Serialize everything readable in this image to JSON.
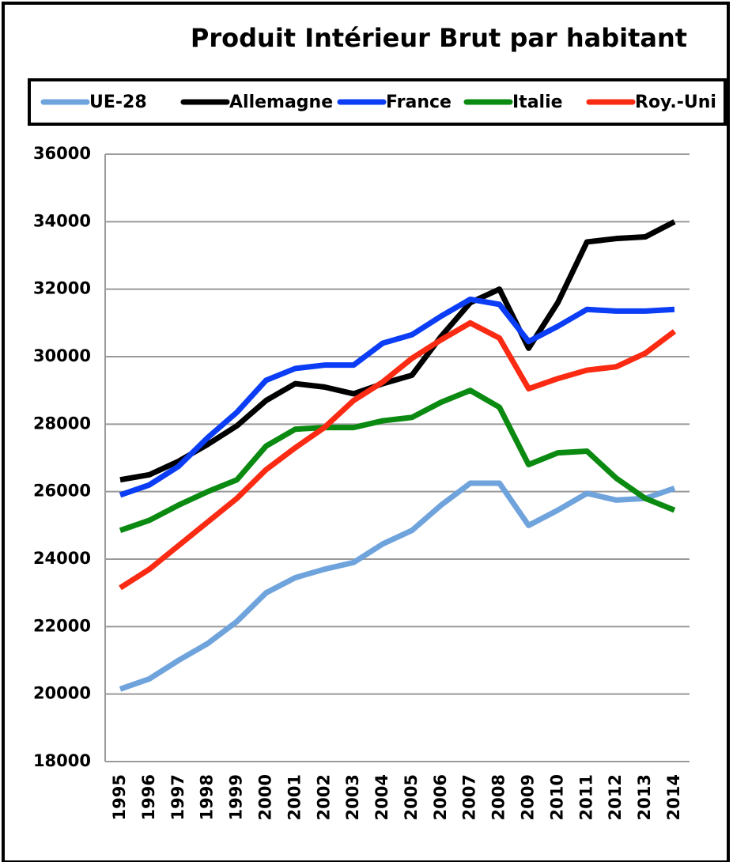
{
  "chart_data": {
    "type": "line",
    "title": "Produit Intérieur Brut par habitant",
    "categories": [
      "1995",
      "1996",
      "1997",
      "1998",
      "1999",
      "2000",
      "2001",
      "2002",
      "2003",
      "2004",
      "2005",
      "2006",
      "2007",
      "2008",
      "2009",
      "2010",
      "2011",
      "2012",
      "2013",
      "2014"
    ],
    "series": [
      {
        "name": "UE-28",
        "color": "#6fa3dc",
        "values": [
          20150,
          20450,
          21000,
          21500,
          22150,
          23000,
          23450,
          23700,
          23900,
          24450,
          24850,
          25600,
          26250,
          26250,
          25000,
          25450,
          25950,
          25750,
          25800,
          26100
        ]
      },
      {
        "name": "Allemagne",
        "color": "#000000",
        "values": [
          26350,
          26500,
          26900,
          27400,
          27950,
          28700,
          29200,
          29100,
          28900,
          29200,
          29450,
          30600,
          31600,
          32000,
          30250,
          31600,
          33400,
          33500,
          33550,
          34000
        ]
      },
      {
        "name": "France",
        "color": "#0a3df5",
        "values": [
          25900,
          26200,
          26750,
          27600,
          28350,
          29300,
          29650,
          29750,
          29750,
          30400,
          30650,
          31200,
          31700,
          31550,
          30450,
          30900,
          31400,
          31350,
          31350,
          31400
        ]
      },
      {
        "name": "Italie",
        "color": "#0a8a10",
        "values": [
          24850,
          25150,
          25600,
          26000,
          26350,
          27350,
          27850,
          27900,
          27900,
          28100,
          28200,
          28650,
          29000,
          28500,
          26800,
          27150,
          27200,
          26400,
          25800,
          25450
        ]
      },
      {
        "name": "Roy.-Uni",
        "color": "#fb2a12",
        "values": [
          23150,
          23700,
          24400,
          25100,
          25800,
          26650,
          27300,
          27900,
          28700,
          29250,
          29950,
          30500,
          31000,
          30550,
          29050,
          29350,
          29600,
          29700,
          30100,
          30750
        ]
      }
    ],
    "ylim": [
      18000,
      36000
    ],
    "yticks": [
      18000,
      20000,
      22000,
      24000,
      26000,
      28000,
      30000,
      32000,
      34000,
      36000
    ],
    "grid": true,
    "legend": "top"
  }
}
